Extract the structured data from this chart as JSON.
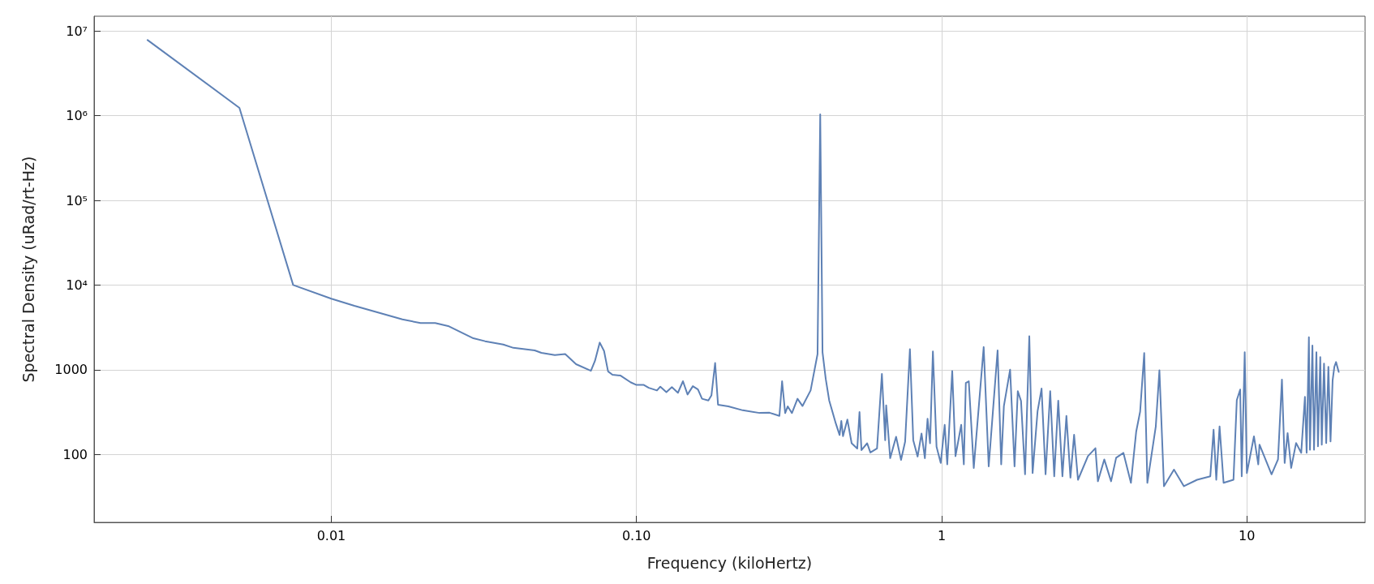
{
  "chart_data": {
    "type": "line",
    "xlabel": "Frequency (kiloHertz)",
    "ylabel": "Spectral Density (uRad/rt-Hz)",
    "log": "xy",
    "grid": true,
    "marker": "none",
    "line_style": "solid",
    "xlim": [
      0.00167,
      24.4
    ],
    "ylim": [
      15.7,
      15000000
    ],
    "xticks": [
      0.01,
      {
        "value": 0.1,
        "label": "0.10"
      },
      1,
      10
    ],
    "yticks": [
      100,
      1000,
      {
        "value": 10000,
        "label": "10⁴"
      },
      {
        "value": 100000,
        "label": "10⁵"
      },
      {
        "value": 1000000,
        "label": "10⁶"
      },
      {
        "value": 10000000,
        "label": "10⁷"
      }
    ],
    "series": [
      {
        "color": "#5e81b5",
        "x": [
          0.0025,
          0.005,
          0.0075,
          0.01,
          0.0119,
          0.0171,
          0.0196,
          0.0219,
          0.0243,
          0.0292,
          0.0319,
          0.0366,
          0.0395,
          0.0464,
          0.0488,
          0.054,
          0.0584,
          0.0634,
          0.0709,
          0.0731,
          0.0758,
          0.0783,
          0.0807,
          0.0834,
          0.0887,
          0.0956,
          0.1,
          0.1057,
          0.1097,
          0.1167,
          0.1197,
          0.1253,
          0.1306,
          0.1367,
          0.142,
          0.147,
          0.153,
          0.159,
          0.164,
          0.172,
          0.176,
          0.181,
          0.185,
          0.2,
          0.223,
          0.253,
          0.273,
          0.294,
          0.3,
          0.307,
          0.313,
          0.323,
          0.337,
          0.35,
          0.372,
          0.392,
          0.4,
          0.407,
          0.417,
          0.428,
          0.45,
          0.463,
          0.469,
          0.475,
          0.491,
          0.507,
          0.529,
          0.538,
          0.546,
          0.57,
          0.584,
          0.614,
          0.637,
          0.653,
          0.658,
          0.678,
          0.709,
          0.736,
          0.759,
          0.787,
          0.807,
          0.834,
          0.859,
          0.881,
          0.899,
          0.916,
          0.936,
          0.962,
          0.993,
          1.023,
          1.043,
          1.083,
          1.11,
          1.159,
          1.182,
          1.2,
          1.227,
          1.274,
          1.373,
          1.426,
          1.525,
          1.567,
          1.599,
          1.676,
          1.733,
          1.776,
          1.82,
          1.876,
          1.937,
          1.986,
          2.062,
          2.125,
          2.19,
          2.268,
          2.338,
          2.41,
          2.487,
          2.563,
          2.642,
          2.716,
          2.797,
          3.015,
          3.19,
          3.25,
          3.41,
          3.59,
          3.73,
          3.94,
          4.17,
          4.34,
          4.47,
          4.61,
          4.72,
          5.03,
          5.17,
          5.35,
          5.77,
          6.22,
          6.87,
          7.59,
          7.78,
          7.94,
          8.14,
          8.39,
          9.04,
          9.27,
          9.51,
          9.62,
          9.84,
          10,
          10.55,
          10.9,
          11,
          12.05,
          12.65,
          13.03,
          13.3,
          13.6,
          13.97,
          14.5,
          15.07,
          15.5,
          15.7,
          15.97,
          16.1,
          16.4,
          16.6,
          16.9,
          17.1,
          17.4,
          17.6,
          17.9,
          18.2,
          18.5,
          18.8,
          19.1,
          19.35,
          19.6,
          20
        ],
        "values": [
          7850000,
          1240000,
          10000,
          6900,
          5680,
          3930,
          3550,
          3550,
          3250,
          2350,
          2170,
          1980,
          1810,
          1690,
          1580,
          1490,
          1530,
          1160,
          970,
          1270,
          2090,
          1660,
          955,
          870,
          850,
          710,
          660,
          660,
          610,
          568,
          630,
          542,
          621,
          533,
          730,
          509,
          638,
          583,
          453,
          433,
          496,
          1200,
          386,
          368,
          331,
          308,
          310,
          284,
          730,
          307,
          368,
          307,
          453,
          372,
          568,
          1530,
          1040000,
          1600,
          777,
          433,
          231,
          169,
          248,
          164,
          257,
          135,
          117,
          316,
          112,
          135,
          105,
          117,
          889,
          147,
          378,
          90,
          161,
          86,
          141,
          1750,
          147,
          94,
          176,
          90,
          263,
          135,
          1640,
          123,
          79,
          223,
          76,
          964,
          95,
          223,
          76,
          698,
          730,
          69,
          1850,
          72,
          1690,
          76,
          372,
          1000,
          72,
          557,
          426,
          58,
          2480,
          60,
          324,
          598,
          58,
          557,
          55,
          430,
          55,
          284,
          53,
          170,
          50,
          95,
          118,
          48,
          87,
          48,
          91,
          104,
          46,
          186,
          319,
          1570,
          46,
          213,
          982,
          42,
          66,
          42,
          50,
          55,
          195,
          50,
          213,
          46,
          50,
          437,
          583,
          55,
          1610,
          60,
          163,
          76,
          130,
          58,
          87,
          764,
          79,
          178,
          69,
          136,
          104,
          478,
          104,
          2420,
          113,
          1930,
          113,
          1610,
          124,
          1410,
          130,
          1180,
          136,
          1080,
          142,
          750,
          1080,
          1230,
          940
        ]
      }
    ]
  }
}
